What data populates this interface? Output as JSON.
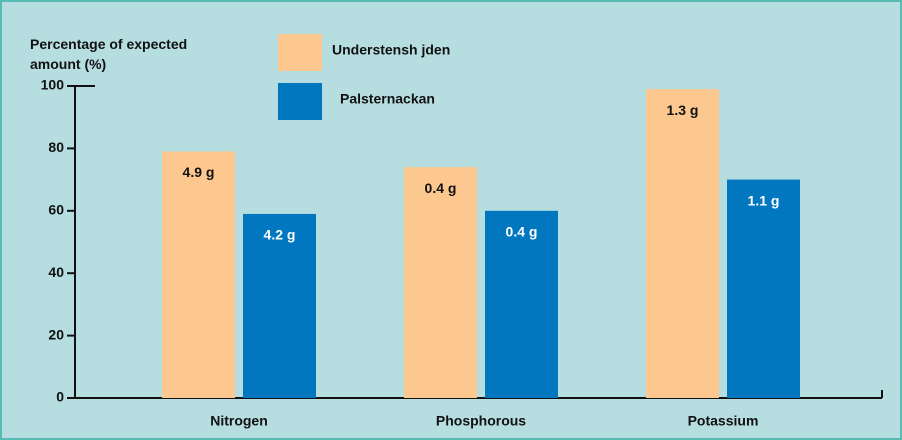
{
  "chart_data": {
    "type": "bar",
    "y_label": "Percentage of expected amount (%)",
    "categories": [
      "Nitrogen",
      "Phosphorous",
      "Potassium"
    ],
    "series": [
      {
        "name": "Understensh jden",
        "color": "#fcc88f",
        "values": [
          79,
          74,
          99
        ],
        "labels": [
          "4.9 g",
          "0.4 g",
          "1.3 g"
        ]
      },
      {
        "name": "Palsternackan",
        "color": "#0077bf",
        "values": [
          59,
          60,
          70
        ],
        "labels": [
          "4.2  g",
          "0.4 g",
          "1.1 g"
        ]
      }
    ],
    "ylim": [
      0,
      100
    ],
    "yticks": [
      0,
      20,
      40,
      60,
      80,
      100
    ],
    "grid": false
  }
}
